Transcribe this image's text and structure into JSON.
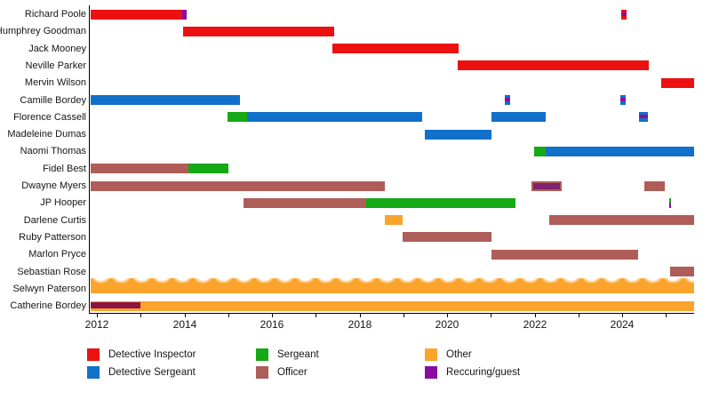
{
  "colors": {
    "di": "#ED1010",
    "ds": "#1170C9",
    "sgt": "#15A915",
    "off": "#AF5D58",
    "other": "#FBA42C",
    "guest": "#8A0DA1",
    "guest_on_orange": "#8D1345",
    "guest_on_officer": "#7D2370",
    "axis": "#000000"
  },
  "chart_data": {
    "type": "gantt-timeline",
    "x_axis": {
      "min": 2011.85,
      "max": 2025.65,
      "tick_years": [
        2012,
        2013,
        2014,
        2015,
        2016,
        2017,
        2018,
        2019,
        2020,
        2021,
        2022,
        2023,
        2024,
        2025
      ],
      "label_years": [
        "2012",
        "2014",
        "2016",
        "2018",
        "2020",
        "2022",
        "2024"
      ],
      "grid": false
    },
    "legend_position": "bottom",
    "legend": [
      {
        "label": "Detective Inspector",
        "role": "di"
      },
      {
        "label": "Detective Sergeant",
        "role": "ds"
      },
      {
        "label": "Sergeant",
        "role": "sgt"
      },
      {
        "label": "Officer",
        "role": "off"
      },
      {
        "label": "Other",
        "role": "other"
      },
      {
        "label": "Reccuring/guest",
        "role": "guest"
      }
    ],
    "rows": [
      {
        "name": "Richard Poole",
        "bars": [
          {
            "from": 2011.85,
            "to": 2013.95,
            "role": "di"
          },
          {
            "from": 2013.95,
            "to": 2014.05,
            "role": "guest"
          },
          {
            "from": 2023.98,
            "to": 2024.1,
            "role": "di",
            "guest": "middle"
          }
        ]
      },
      {
        "name": "Humphrey Goodman",
        "bars": [
          {
            "from": 2013.97,
            "to": 2017.42,
            "role": "di"
          }
        ]
      },
      {
        "name": "Jack Mooney",
        "bars": [
          {
            "from": 2017.38,
            "to": 2020.26,
            "role": "di"
          }
        ]
      },
      {
        "name": "Neville Parker",
        "bars": [
          {
            "from": 2020.24,
            "to": 2024.6,
            "role": "di"
          }
        ]
      },
      {
        "name": "Mervin Wilson",
        "bars": [
          {
            "from": 2024.9,
            "to": 2025.64,
            "role": "di"
          }
        ]
      },
      {
        "name": "Camille Bordey",
        "bars": [
          {
            "from": 2011.85,
            "to": 2015.27,
            "role": "ds"
          },
          {
            "from": 2021.32,
            "to": 2021.44,
            "role": "ds",
            "guest": "middle"
          },
          {
            "from": 2023.96,
            "to": 2024.08,
            "role": "ds",
            "guest": "middle"
          }
        ]
      },
      {
        "name": "Florence Cassell",
        "bars": [
          {
            "from": 2014.98,
            "to": 2015.43,
            "role": "sgt"
          },
          {
            "from": 2015.43,
            "to": 2019.43,
            "role": "ds"
          },
          {
            "from": 2021.01,
            "to": 2022.25,
            "role": "ds"
          },
          {
            "from": 2024.38,
            "to": 2024.58,
            "role": "ds",
            "guest": "middle"
          }
        ]
      },
      {
        "name": "Madeleine Dumas",
        "bars": [
          {
            "from": 2019.49,
            "to": 2021.01,
            "role": "ds"
          }
        ]
      },
      {
        "name": "Naomi Thomas",
        "bars": [
          {
            "from": 2021.99,
            "to": 2022.25,
            "role": "sgt"
          },
          {
            "from": 2022.25,
            "to": 2025.64,
            "role": "ds"
          }
        ]
      },
      {
        "name": "Fidel Best",
        "bars": [
          {
            "from": 2011.85,
            "to": 2014.09,
            "role": "off"
          },
          {
            "from": 2014.09,
            "to": 2015.0,
            "role": "sgt"
          }
        ]
      },
      {
        "name": "Dwayne Myers",
        "bars": [
          {
            "from": 2011.85,
            "to": 2018.58,
            "role": "off"
          },
          {
            "from": 2021.93,
            "to": 2022.62,
            "role": "off",
            "guest": "inset",
            "guest_color": "guest_on_officer"
          },
          {
            "from": 2024.51,
            "to": 2024.97,
            "role": "off"
          }
        ]
      },
      {
        "name": "JP Hooper",
        "bars": [
          {
            "from": 2015.35,
            "to": 2018.15,
            "role": "off"
          },
          {
            "from": 2018.15,
            "to": 2021.56,
            "role": "sgt"
          },
          {
            "from": 2025.07,
            "to": 2025.11,
            "role": "sgt",
            "guest": "bottom"
          }
        ]
      },
      {
        "name": "Darlene Curtis",
        "bars": [
          {
            "from": 2018.58,
            "to": 2018.98,
            "role": "other"
          },
          {
            "from": 2022.33,
            "to": 2025.64,
            "role": "off"
          }
        ]
      },
      {
        "name": "Ruby Patterson",
        "bars": [
          {
            "from": 2018.98,
            "to": 2021.01,
            "role": "off"
          }
        ]
      },
      {
        "name": "Marlon Pryce",
        "bars": [
          {
            "from": 2021.01,
            "to": 2024.36,
            "role": "off"
          }
        ]
      },
      {
        "name": "Sebastian Rose",
        "bars": [
          {
            "from": 2025.09,
            "to": 2025.64,
            "role": "off"
          }
        ]
      },
      {
        "name": "Selwyn Paterson",
        "bars": [
          {
            "from": 2011.85,
            "to": 2025.64,
            "role": "other",
            "style": "fade"
          }
        ]
      },
      {
        "name": "Catherine Bordey",
        "bars": [
          {
            "from": 2011.85,
            "to": 2025.64,
            "role": "other"
          }
        ],
        "overlays": [
          {
            "from": 2011.85,
            "to": 2013.0,
            "color": "guest_on_orange"
          }
        ]
      }
    ]
  }
}
